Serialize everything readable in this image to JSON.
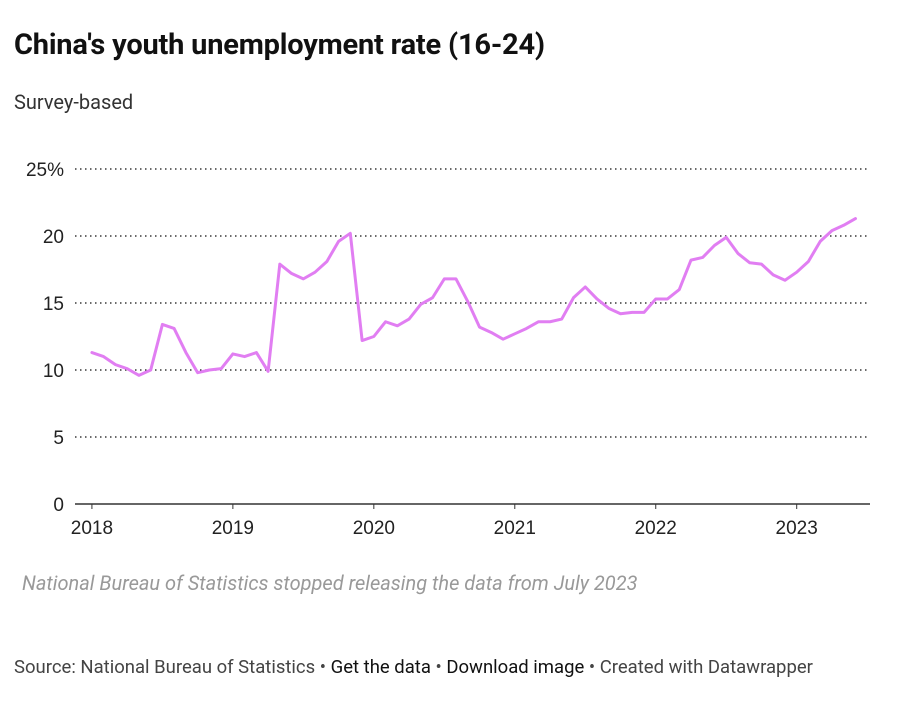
{
  "chart_data": {
    "type": "line",
    "title": "China's youth unemployment rate (16-24)",
    "subtitle": "Survey-based",
    "note": "National Bureau of Statistics stopped releasing the data from July 2023",
    "source": "Source: National Bureau of Statistics",
    "links": [
      "Get the data",
      "Download image",
      "Created with Datawrapper"
    ],
    "separator": "•",
    "color": "#e17ef2",
    "x": [
      2018,
      2018.083,
      2018.167,
      2018.25,
      2018.333,
      2018.417,
      2018.5,
      2018.583,
      2018.667,
      2018.75,
      2018.833,
      2018.917,
      2019,
      2019.083,
      2019.167,
      2019.25,
      2019.333,
      2019.417,
      2019.5,
      2019.583,
      2019.667,
      2019.75,
      2019.833,
      2019.917,
      2020,
      2020.083,
      2020.167,
      2020.25,
      2020.333,
      2020.417,
      2020.5,
      2020.583,
      2020.667,
      2020.75,
      2020.833,
      2020.917,
      2021,
      2021.083,
      2021.167,
      2021.25,
      2021.333,
      2021.417,
      2021.5,
      2021.583,
      2021.667,
      2021.75,
      2021.833,
      2021.917,
      2022,
      2022.083,
      2022.167,
      2022.25,
      2022.333,
      2022.417,
      2022.5,
      2022.583,
      2022.667,
      2022.75,
      2022.833,
      2022.917,
      2023,
      2023.083,
      2023.167,
      2023.25,
      2023.333,
      2023.417
    ],
    "values": [
      11.3,
      11.0,
      10.4,
      10.1,
      9.6,
      10.0,
      13.4,
      13.1,
      11.3,
      9.8,
      10.0,
      10.1,
      11.2,
      11.0,
      11.3,
      9.9,
      17.9,
      17.2,
      16.8,
      17.3,
      18.1,
      19.6,
      20.2,
      12.2,
      12.5,
      13.6,
      13.3,
      13.8,
      14.9,
      15.4,
      16.8,
      16.8,
      15.1,
      13.2,
      12.8,
      12.3,
      12.7,
      13.1,
      13.6,
      13.6,
      13.8,
      15.4,
      16.2,
      15.3,
      14.6,
      14.2,
      14.3,
      14.3,
      15.3,
      15.3,
      16.0,
      18.2,
      18.4,
      19.3,
      19.9,
      18.7,
      18.0,
      17.9,
      17.1,
      16.7,
      17.3,
      18.1,
      19.6,
      20.4,
      20.8,
      21.3
    ],
    "xlim": [
      2017.88,
      2023.52
    ],
    "xticks": [
      2018,
      2019,
      2020,
      2021,
      2022,
      2023
    ],
    "ylim": [
      0,
      25
    ],
    "yticks": [
      0,
      5,
      10,
      15,
      20,
      {
        "value": 25,
        "label": "25%"
      }
    ],
    "grid": true
  }
}
